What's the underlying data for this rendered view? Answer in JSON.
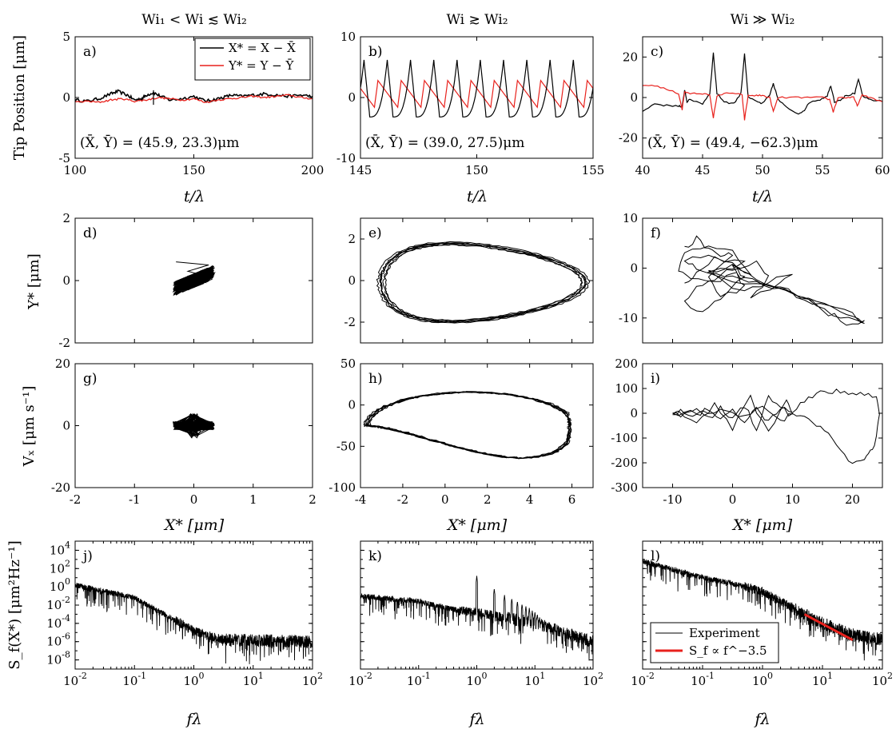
{
  "column_titles": [
    "Wi₁ < Wi ≲ Wi₂",
    "Wi ≳ Wi₂",
    "Wi ≫ Wi₂"
  ],
  "row_labels": {
    "row1_ylabel": "Tip Position [μm]",
    "row1_xlabel": "t/λ",
    "row2_ylabel": "Y* [μm]",
    "row3_ylabel": "Vₓ [μm s⁻¹]",
    "row3_xlabel": "X* [μm]",
    "row4_ylabel": "S_f(X*) [μm²Hz⁻¹]",
    "row4_xlabel": "fλ"
  },
  "colors": {
    "x_series": "#000000",
    "y_series": "#e8211c",
    "fit": "#e8211c"
  },
  "chart_data": [
    {
      "panel": "a)",
      "type": "line",
      "xlabel": "t/λ",
      "ylabel": "Tip Position [μm]",
      "xlim": [
        100,
        200
      ],
      "ylim": [
        -5,
        5
      ],
      "xticks": [
        "100",
        "150",
        "200"
      ],
      "yticks": [
        "-5",
        "0",
        "5"
      ],
      "annotation": "(X̄, Ȳ) = (45.9, 23.3)μm",
      "legend": {
        "position": "top-right",
        "entries": [
          "X* = X − X̄",
          "Y* = Y − Ȳ"
        ]
      },
      "series": [
        {
          "name": "X* = X − X̄",
          "x": [
            100,
            105,
            110,
            115,
            118,
            122,
            125,
            128,
            130,
            133,
            136,
            140,
            145,
            150,
            155,
            158,
            162,
            166,
            170,
            175,
            180,
            185,
            190,
            195,
            200
          ],
          "y": [
            -0.2,
            -0.3,
            -0.1,
            0.3,
            0.5,
            0.2,
            -0.2,
            -0.1,
            0.2,
            0.4,
            0.1,
            -0.2,
            -0.1,
            0.1,
            -0.3,
            -0.2,
            0,
            0.2,
            0.1,
            0.2,
            0.3,
            0.2,
            0.1,
            0.2,
            0.1
          ]
        },
        {
          "name": "Y* = Y − Ȳ",
          "x": [
            100,
            105,
            110,
            115,
            120,
            125,
            130,
            135,
            140,
            145,
            150,
            155,
            160,
            165,
            170,
            175,
            180,
            185,
            190,
            195,
            200
          ],
          "y": [
            -0.4,
            -0.3,
            -0.4,
            -0.2,
            -0.1,
            -0.3,
            -0.2,
            0,
            -0.1,
            -0.2,
            -0.1,
            -0.4,
            -0.2,
            -0.1,
            0,
            0.1,
            0,
            0.1,
            0.2,
            0,
            -0.1
          ]
        }
      ]
    },
    {
      "panel": "b)",
      "type": "line",
      "xlabel": "t/λ",
      "ylabel": "",
      "xlim": [
        145,
        155
      ],
      "ylim": [
        -10,
        10
      ],
      "xticks": [
        "145",
        "150",
        "155"
      ],
      "yticks": [
        "-10",
        "0",
        "10"
      ],
      "annotation": "(X̄, Ȳ) = (39.0, 27.5)μm",
      "period": 1.0,
      "first_peak": 146.15,
      "series": [
        {
          "name": "X*",
          "peak": 6.2,
          "trough": -3.2
        },
        {
          "name": "Y*",
          "peak": 2.8,
          "trough": -1.6
        }
      ]
    },
    {
      "panel": "c)",
      "type": "line",
      "xlabel": "t/λ",
      "ylabel": "",
      "xlim": [
        40,
        60
      ],
      "ylim": [
        -30,
        30
      ],
      "xticks": [
        "40",
        "45",
        "50",
        "55",
        "60"
      ],
      "yticks": [
        "-20",
        "0",
        "20"
      ],
      "annotation": "(X̄, Ȳ) = (49.4, −62.3)μm",
      "series": [
        {
          "name": "X*",
          "x": [
            40,
            41,
            42,
            43,
            43.3,
            43.5,
            43.7,
            44,
            45,
            45.6,
            45.9,
            46.2,
            46.8,
            47.6,
            48.2,
            48.5,
            48.8,
            49.5,
            50,
            50.6,
            50.9,
            51.3,
            52,
            53,
            53.5,
            54,
            54.8,
            55.4,
            55.7,
            56,
            56.5,
            57,
            57.7,
            58,
            58.4,
            59,
            60
          ],
          "y": [
            -7,
            -3,
            -4,
            -4,
            -5,
            4,
            -2,
            -1,
            -3,
            2,
            22,
            2,
            -2,
            -3,
            2,
            22,
            0,
            -2,
            -3,
            1,
            7,
            -1,
            -5,
            -8,
            -6,
            -2,
            -1,
            1,
            6,
            -2,
            -1,
            1,
            2,
            9,
            0,
            -1,
            -2
          ]
        },
        {
          "name": "Y*",
          "x": [
            40,
            41,
            42,
            43,
            43.3,
            43.5,
            43.8,
            44.5,
            45,
            45.6,
            45.9,
            46.2,
            47,
            48,
            48.3,
            48.5,
            48.8,
            49.5,
            50,
            50.6,
            50.9,
            51.3,
            52,
            53,
            54,
            55,
            55.6,
            55.9,
            56.3,
            57,
            57.6,
            57.9,
            58.3,
            59,
            60
          ],
          "y": [
            6,
            6,
            4,
            2,
            -6,
            3,
            2,
            2,
            2,
            1,
            -10,
            1,
            2,
            2,
            1,
            -11,
            1,
            1,
            1,
            0,
            -7,
            0,
            0,
            0,
            0,
            0,
            -1,
            -7,
            0,
            0,
            0,
            -4,
            1,
            0,
            -2
          ]
        }
      ]
    },
    {
      "panel": "d)",
      "type": "line",
      "xlabel": "",
      "ylabel": "Y* [μm]",
      "xlim": [
        -2,
        2
      ],
      "ylim": [
        -2,
        2
      ],
      "xticks": [],
      "yticks": [
        "-2",
        "0",
        "2"
      ],
      "note": "dense cluster near origin"
    },
    {
      "panel": "e)",
      "type": "line",
      "xlabel": "",
      "ylabel": "",
      "xlim": [
        -4,
        7
      ],
      "ylim": [
        -3,
        3
      ],
      "xticks": [],
      "yticks": [
        "-2",
        "0",
        "2"
      ],
      "note": "closed limit-cycle orbits"
    },
    {
      "panel": "f)",
      "type": "line",
      "xlabel": "",
      "ylabel": "",
      "xlim": [
        -15,
        25
      ],
      "ylim": [
        -15,
        10
      ],
      "xticks": [],
      "yticks": [
        "-10",
        "0",
        "10"
      ],
      "series": [
        {
          "name": "orbit",
          "x": [
            -8,
            -6,
            -4,
            -2,
            0,
            -4,
            -2,
            2,
            0,
            4,
            6,
            3,
            8,
            10,
            6,
            2,
            -4,
            0,
            4,
            8,
            12,
            16,
            20,
            22,
            18,
            14,
            10,
            4,
            -2,
            -6,
            -8,
            -4,
            0,
            2,
            -2,
            -5,
            -8,
            -6,
            -3,
            0,
            3,
            0,
            -4,
            -8,
            -9,
            -7,
            -3,
            0,
            2,
            6,
            10,
            14,
            18,
            21,
            22,
            19,
            16,
            12,
            8,
            4,
            0,
            -4,
            2,
            -3,
            -6,
            -8
          ],
          "y": [
            4,
            6,
            4,
            2,
            3,
            -2,
            -6,
            -4,
            0,
            1,
            -2,
            -6,
            -3,
            -1,
            -3,
            -5,
            -1,
            1,
            -2,
            -4,
            -6,
            -8,
            -9,
            -11,
            -10,
            -7,
            -5,
            -3,
            -2,
            0,
            2,
            3,
            1,
            -2,
            -6,
            -9,
            -7,
            -4,
            -2,
            0,
            -1,
            3,
            5,
            3,
            0,
            -2,
            -3,
            -1,
            -2,
            -3,
            -5,
            -7,
            -9,
            -10,
            -11,
            -11,
            -9,
            -6,
            -4,
            -3,
            -2,
            -1,
            1,
            2,
            -1,
            -3
          ]
        }
      ]
    },
    {
      "panel": "g)",
      "type": "line",
      "xlabel": "X* [μm]",
      "ylabel": "Vₓ [μm s⁻¹]",
      "xlim": [
        -2,
        2
      ],
      "ylim": [
        -20,
        20
      ],
      "xticks": [
        "-2",
        "-1",
        "0",
        "1",
        "2"
      ],
      "yticks": [
        "-20",
        "0",
        "20"
      ],
      "note": "dense cluster near origin"
    },
    {
      "panel": "h)",
      "type": "line",
      "xlabel": "X* [μm]",
      "ylabel": "",
      "xlim": [
        -4,
        7
      ],
      "ylim": [
        -100,
        50
      ],
      "xticks": [
        "-4",
        "-2",
        "0",
        "2",
        "4",
        "6"
      ],
      "yticks": [
        "-100",
        "-50",
        "0",
        "50"
      ],
      "note": "closed limit-cycle orbits"
    },
    {
      "panel": "i)",
      "type": "line",
      "xlabel": "X* [μm]",
      "ylabel": "",
      "xlim": [
        -15,
        25
      ],
      "ylim": [
        -300,
        200
      ],
      "xticks": [
        "-10",
        "0",
        "10",
        "20"
      ],
      "yticks": [
        "-300",
        "-200",
        "-100",
        "0",
        "100",
        "200"
      ],
      "series": [
        {
          "name": "orbit",
          "x": [
            -10,
            -8,
            -6,
            -4,
            -2,
            0,
            2,
            4,
            6,
            8,
            10,
            12,
            14,
            16,
            18,
            20,
            22,
            24,
            24.5,
            24,
            23,
            22,
            20,
            18,
            16,
            14,
            12,
            10,
            8,
            6,
            4,
            2,
            0,
            -2,
            -4,
            -6,
            -8,
            -10,
            -9,
            -6,
            -3,
            0,
            3,
            6,
            9,
            10,
            8,
            5,
            2,
            -1,
            -4,
            -7,
            -10
          ],
          "y": [
            0,
            10,
            -10,
            20,
            -20,
            15,
            -30,
            30,
            -40,
            20,
            0,
            50,
            80,
            90,
            88,
            85,
            80,
            70,
            0,
            -100,
            -160,
            -190,
            -200,
            -150,
            -80,
            -40,
            -20,
            -10,
            20,
            60,
            -60,
            30,
            -30,
            20,
            -20,
            10,
            -10,
            0,
            5,
            -40,
            40,
            -60,
            60,
            -80,
            50,
            0,
            -30,
            20,
            -10,
            10,
            -5,
            5,
            0
          ]
        }
      ]
    },
    {
      "panel": "j)",
      "type": "line",
      "scale": "log-log",
      "xlabel": "fλ",
      "ylabel": "S_f(X*) [μm²Hz⁻¹]",
      "xlim": [
        0.01,
        100
      ],
      "ylim": [
        1e-09,
        100000.0
      ],
      "xticks": [
        "10",
        "10",
        "10",
        "10",
        "10"
      ],
      "xtick_exps": [
        "-2",
        "-1",
        "0",
        "1",
        "2"
      ],
      "yticks": [
        "10",
        "10",
        "10",
        "10",
        "10",
        "10",
        "10"
      ],
      "ytick_exps": [
        "-8",
        "-6",
        "-4",
        "-2",
        "0",
        "2",
        "4"
      ],
      "spectrum": {
        "start_exp": 0.2,
        "segments": [
          [
            0.01,
            0.2
          ],
          [
            0.1,
            -1.2
          ],
          [
            1,
            -4.8
          ],
          [
            3,
            -5.8
          ],
          [
            100,
            -6.0
          ]
        ],
        "peaks": []
      }
    },
    {
      "panel": "k)",
      "type": "line",
      "scale": "log-log",
      "xlabel": "fλ",
      "ylabel": "",
      "xlim": [
        0.01,
        100
      ],
      "ylim": [
        1e-09,
        100000.0
      ],
      "xticks": [
        "10",
        "10",
        "10",
        "10",
        "10"
      ],
      "xtick_exps": [
        "-2",
        "-1",
        "0",
        "1",
        "2"
      ],
      "yticks": [],
      "ytick_exps": [],
      "spectrum": {
        "segments": [
          [
            0.01,
            -1.0
          ],
          [
            0.1,
            -1.6
          ],
          [
            0.5,
            -2.6
          ],
          [
            1,
            -2.8
          ],
          [
            10,
            -4.0
          ],
          [
            100,
            -6.0
          ]
        ],
        "peaks": [
          [
            1,
            1.2
          ],
          [
            2,
            -0.2
          ],
          [
            3,
            -0.9
          ],
          [
            4,
            -1.3
          ],
          [
            5,
            -1.6
          ],
          [
            6,
            -1.9
          ],
          [
            7,
            -2.1
          ],
          [
            8,
            -2.3
          ],
          [
            9,
            -2.6
          ],
          [
            10,
            -2.8
          ],
          [
            11,
            -3.0
          ],
          [
            12,
            -3.3
          ],
          [
            13,
            -3.5
          ],
          [
            15,
            -3.8
          ],
          [
            17,
            -4.1
          ]
        ]
      }
    },
    {
      "panel": "l)",
      "type": "line",
      "scale": "log-log",
      "xlabel": "fλ",
      "ylabel": "",
      "xlim": [
        0.01,
        100
      ],
      "ylim": [
        1e-09,
        100000.0
      ],
      "xticks": [
        "10",
        "10",
        "10",
        "10",
        "10"
      ],
      "xtick_exps": [
        "-2",
        "-1",
        "0",
        "1",
        "2"
      ],
      "yticks": [],
      "ytick_exps": [],
      "legend": {
        "position": "bottom-left",
        "entries": [
          "Experiment",
          "S_f ∝ f^−3.5"
        ]
      },
      "fit": {
        "slope": -3.5,
        "x": [
          5,
          32
        ],
        "y": [
          0.001,
          1.5e-06
        ]
      },
      "spectrum": {
        "segments": [
          [
            0.01,
            2.8
          ],
          [
            0.1,
            1.0
          ],
          [
            0.3,
            0.4
          ],
          [
            1,
            -0.5
          ],
          [
            3,
            -2.2
          ],
          [
            10,
            -4.0
          ],
          [
            30,
            -5.2
          ],
          [
            100,
            -5.8
          ]
        ],
        "peaks": []
      }
    }
  ]
}
